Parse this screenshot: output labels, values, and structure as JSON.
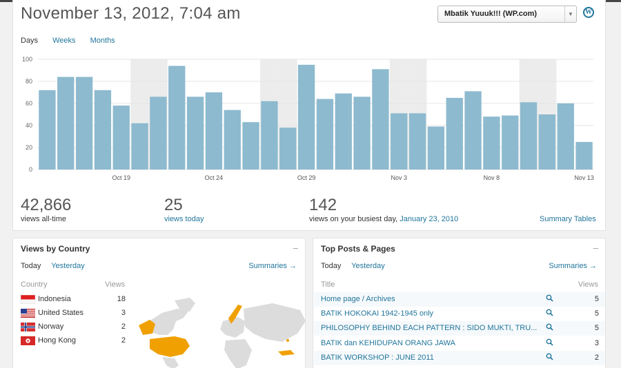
{
  "header": {
    "date_title": "November 13, 2012, 7:04 am",
    "blog_select": "Mbatik Yuuuk!!! (WP.com)"
  },
  "period_tabs": [
    {
      "label": "Days",
      "active": true
    },
    {
      "label": "Weeks",
      "active": false
    },
    {
      "label": "Months",
      "active": false
    }
  ],
  "chart_data": {
    "type": "bar",
    "ylim": [
      0,
      100
    ],
    "yticks": [
      0,
      20,
      40,
      60,
      80,
      100
    ],
    "x_tick_labels": [
      {
        "index": 4,
        "label": "Oct 19"
      },
      {
        "index": 9,
        "label": "Oct 24"
      },
      {
        "index": 14,
        "label": "Oct 29"
      },
      {
        "index": 19,
        "label": "Nov 3"
      },
      {
        "index": 24,
        "label": "Nov 8"
      },
      {
        "index": 29,
        "label": "Nov 13"
      }
    ],
    "values": [
      72,
      84,
      84,
      72,
      58,
      42,
      66,
      94,
      66,
      70,
      54,
      43,
      62,
      38,
      95,
      64,
      69,
      66,
      91,
      51,
      51,
      39,
      65,
      71,
      48,
      49,
      61,
      50,
      60,
      25
    ],
    "weekend_indices": [
      5,
      6,
      12,
      13,
      19,
      20,
      26,
      27
    ],
    "bar_color": "#8dbacf",
    "weekend_color": "#ececec",
    "grid": true
  },
  "stats": {
    "all_time": {
      "value": "42,866",
      "label": "views all-time"
    },
    "today": {
      "value": "25",
      "label": "views today"
    },
    "busiest": {
      "value": "142",
      "label": "views on your busiest day,",
      "date": "January 23, 2010"
    },
    "summary_tables": "Summary Tables"
  },
  "country_box": {
    "title": "Views by Country",
    "minus": "–",
    "tabs": [
      {
        "label": "Today",
        "active": true
      },
      {
        "label": "Yesterday",
        "active": false
      }
    ],
    "summaries": "Summaries →",
    "col_country": "Country",
    "col_views": "Views",
    "rows": [
      {
        "flag": "id",
        "name": "Indonesia",
        "views": "18"
      },
      {
        "flag": "us",
        "name": "United States",
        "views": "3"
      },
      {
        "flag": "no",
        "name": "Norway",
        "views": "2"
      },
      {
        "flag": "hk",
        "name": "Hong Kong",
        "views": "2"
      }
    ]
  },
  "posts_box": {
    "title": "Top Posts & Pages",
    "minus": "–",
    "tabs": [
      {
        "label": "Today",
        "active": true
      },
      {
        "label": "Yesterday",
        "active": false
      }
    ],
    "summaries": "Summaries →",
    "col_title": "Title",
    "col_views": "Views",
    "rows": [
      {
        "title": "Home page / Archives",
        "views": "5"
      },
      {
        "title": "BATIK HOKOKAI 1942-1945 only",
        "views": "5"
      },
      {
        "title": "PHILOSOPHY BEHIND EACH PATTERN : SIDO MUKTI, TRU...",
        "views": "5"
      },
      {
        "title": "BATIK dan KEHIDUPAN ORANG JAWA",
        "views": "3"
      },
      {
        "title": "BATIK WORKSHOP : JUNE 2011",
        "views": "2"
      }
    ]
  },
  "colors": {
    "link": "#21759b",
    "map_highlight": "#f0a000",
    "map_land": "#dcdcdc"
  }
}
